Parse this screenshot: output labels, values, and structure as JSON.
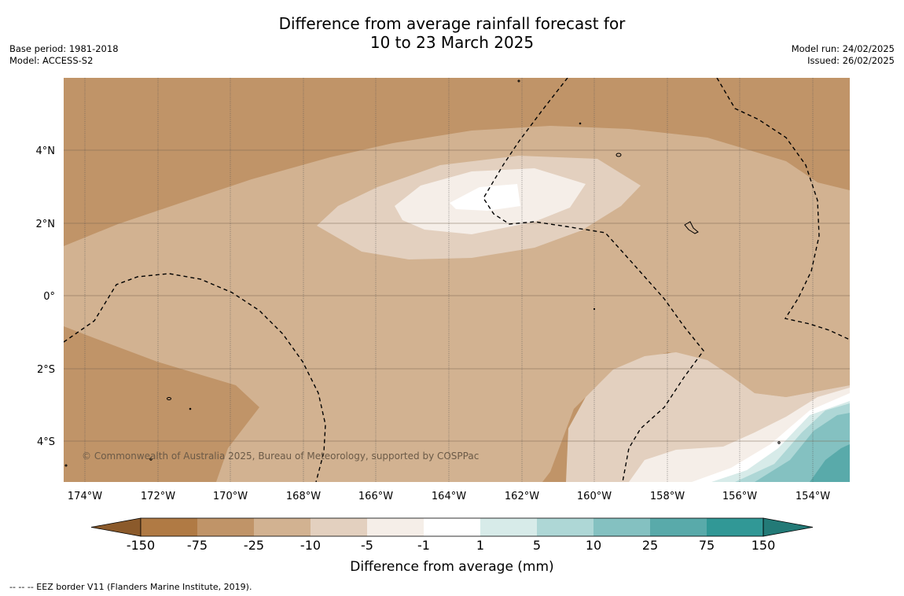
{
  "title": {
    "line1": "Difference from average rainfall forecast for",
    "line2": "10 to 23 March 2025"
  },
  "meta_left": {
    "base_period": "Base period: 1981-2018",
    "model": "Model: ACCESS-S2"
  },
  "meta_right": {
    "model_run": "Model run: 24/02/2025",
    "issued": "Issued: 26/02/2025"
  },
  "map": {
    "lat_labels": [
      "4°N",
      "2°N",
      "0°",
      "2°S",
      "4°S"
    ],
    "lon_labels": [
      "174°W",
      "172°W",
      "170°W",
      "168°W",
      "166°W",
      "164°W",
      "162°W",
      "160°W",
      "158°W",
      "156°W",
      "154°W"
    ],
    "copyright": "© Commonwealth of Australia 2025, Bureau of Meteorology, supported by COSPPac"
  },
  "colorbar": {
    "ticks": [
      "-150",
      "-75",
      "-25",
      "-10",
      "-5",
      "-1",
      "1",
      "5",
      "10",
      "25",
      "75",
      "150"
    ],
    "title": "Difference from average (mm)",
    "colors": [
      "#8b5a2b",
      "#b07a44",
      "#c09468",
      "#d2b291",
      "#e3d0bf",
      "#f5eee8",
      "#ffffff",
      "#d7ebe9",
      "#aed7d6",
      "#84c1c1",
      "#59aaaa",
      "#319896",
      "#237a77"
    ]
  },
  "footnote": "--  --  -- EEZ border V11 (Flanders Marine Institute, 2019)."
}
